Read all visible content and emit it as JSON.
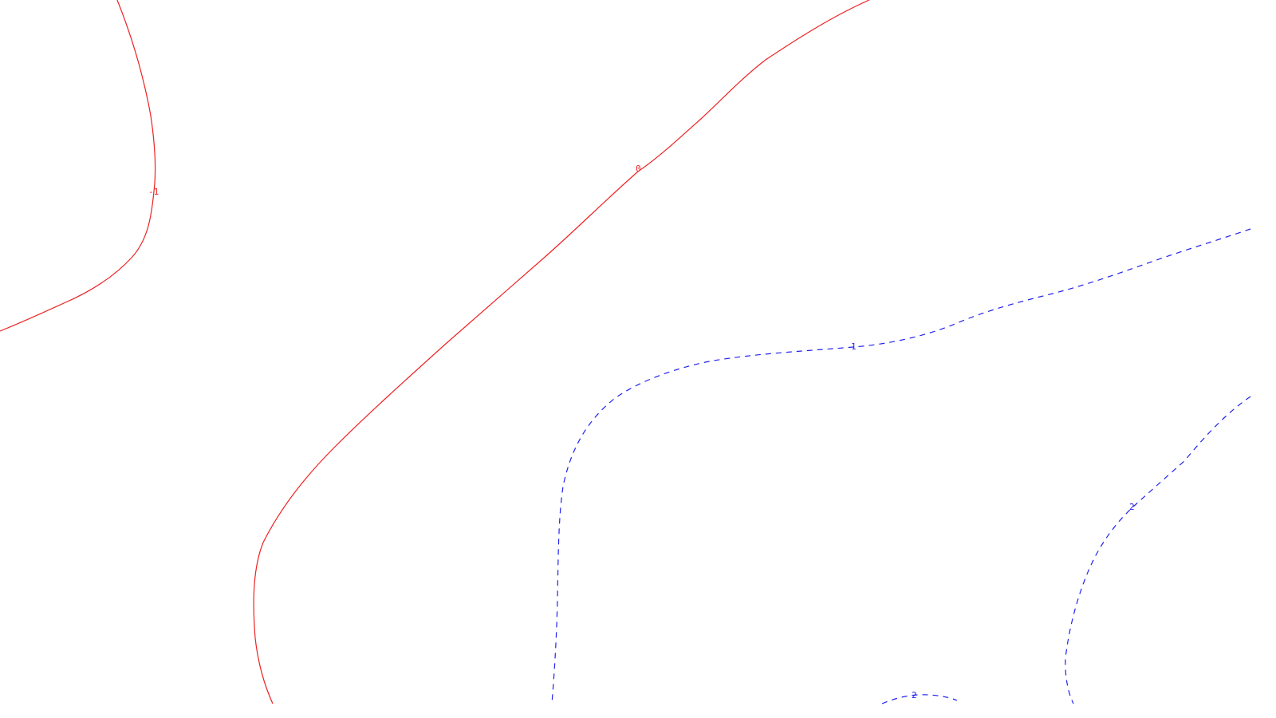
{
  "chart_data": {
    "type": "contour",
    "title": "",
    "xlabel": "",
    "ylabel": "",
    "grid": false,
    "legend": "none",
    "colors": {
      "positive": "#2222ee",
      "non_positive": "#ee2222"
    },
    "levels": [
      {
        "value": -1,
        "label": "-1",
        "color": "#ee2222",
        "line_style": "solid"
      },
      {
        "value": 0,
        "label": "0",
        "color": "#ee2222",
        "line_style": "solid"
      },
      {
        "value": 1,
        "label": "1",
        "color": "#2222ee",
        "line_style": "dashed"
      },
      {
        "value": 2,
        "label": "2",
        "color": "#2222ee",
        "line_style": "dashed"
      },
      {
        "value": 2,
        "label": "2",
        "color": "#2222ee",
        "line_style": "dashed"
      }
    ]
  }
}
